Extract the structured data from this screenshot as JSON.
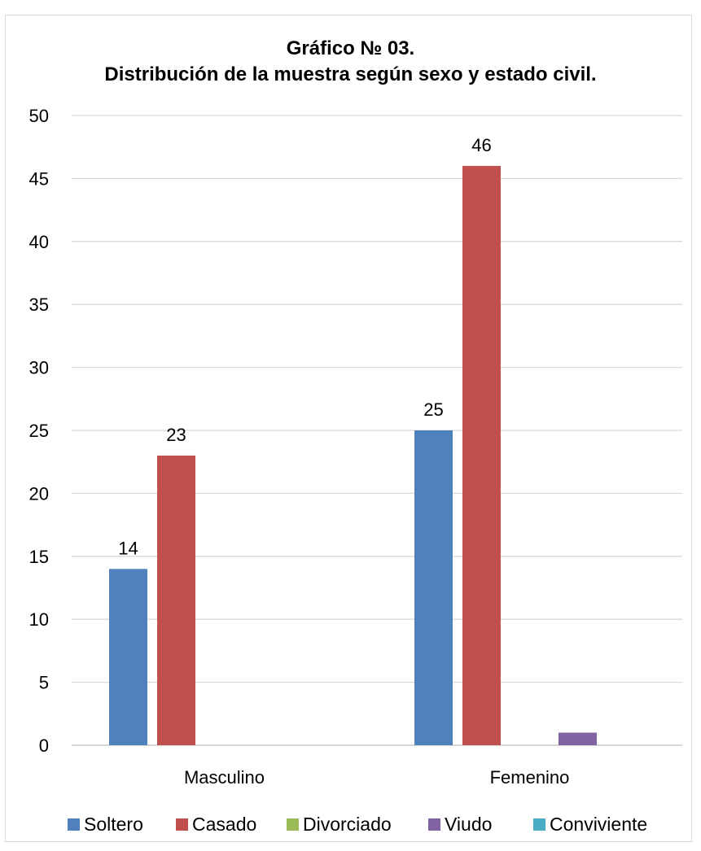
{
  "chart_data": {
    "type": "bar",
    "title": "Gráfico № 03.",
    "subtitle": "Distribución de la muestra según sexo y estado civil.",
    "categories": [
      "Masculino",
      "Femenino"
    ],
    "series": [
      {
        "name": "Soltero",
        "values": [
          14,
          25
        ],
        "color": "#4f81bd"
      },
      {
        "name": "Casado",
        "values": [
          23,
          46
        ],
        "color": "#c0504d"
      },
      {
        "name": "Divorciado",
        "values": [
          0,
          0
        ],
        "color": "#9bbb59"
      },
      {
        "name": "Viudo",
        "values": [
          0,
          1
        ],
        "color": "#8064a2"
      },
      {
        "name": "Conviviente",
        "values": [
          0,
          0
        ],
        "color": "#4bacc6"
      }
    ],
    "data_labels": [
      {
        "series": 0,
        "category": 0,
        "text": "14"
      },
      {
        "series": 1,
        "category": 0,
        "text": "23"
      },
      {
        "series": 0,
        "category": 1,
        "text": "25"
      },
      {
        "series": 1,
        "category": 1,
        "text": "46"
      }
    ],
    "ylim": [
      0,
      50
    ],
    "yticks": [
      0,
      5,
      10,
      15,
      20,
      25,
      30,
      35,
      40,
      45,
      50
    ],
    "grid": true,
    "legend_position": "bottom"
  }
}
